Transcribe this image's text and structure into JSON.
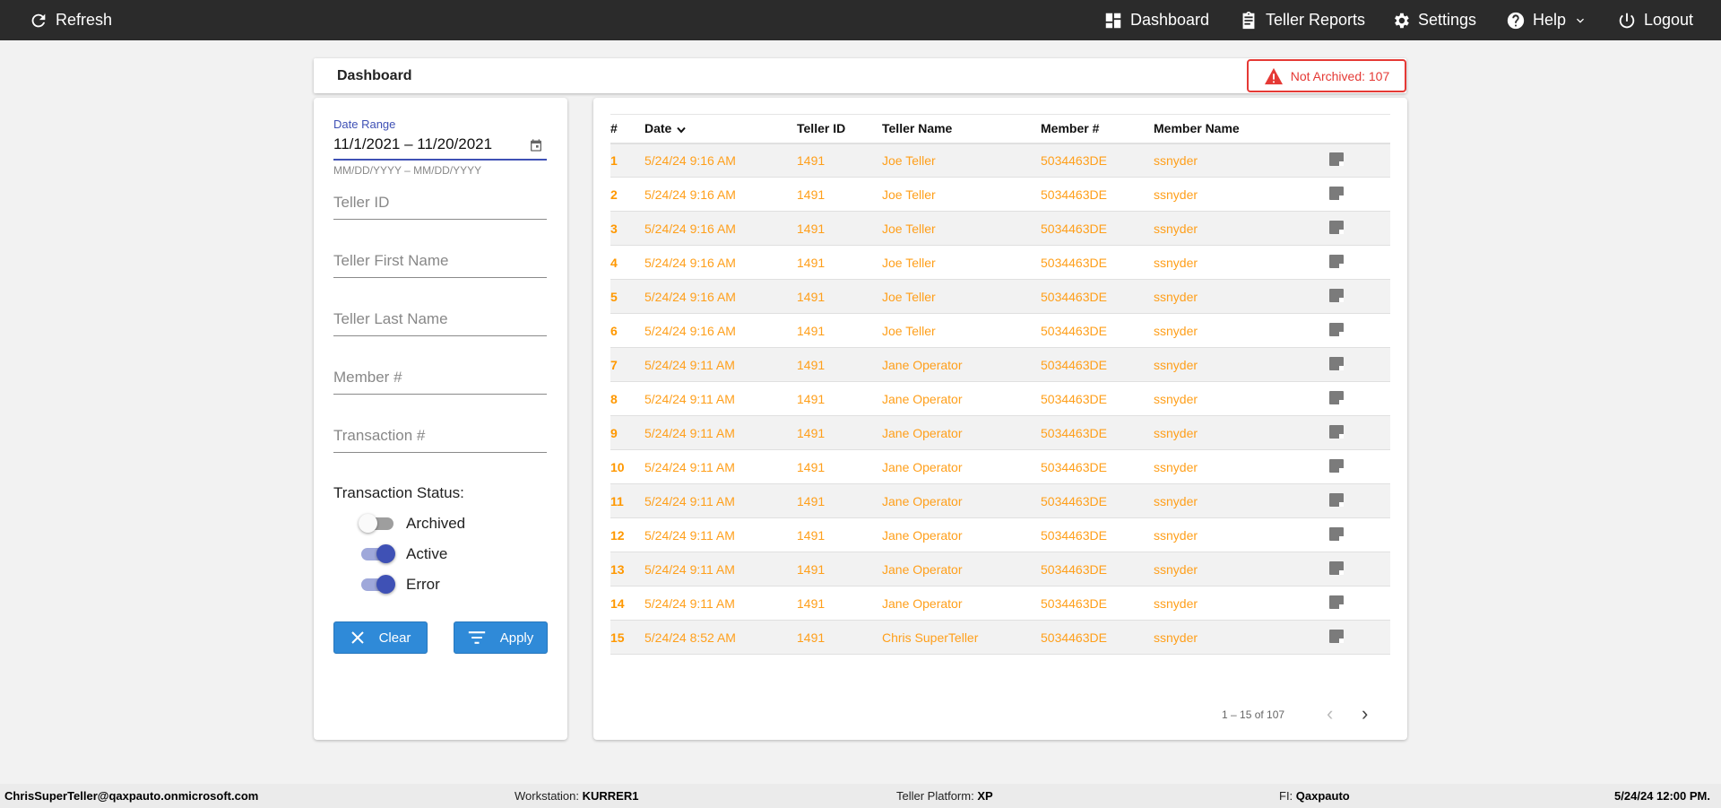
{
  "topbar": {
    "refresh": "Refresh",
    "dashboard": "Dashboard",
    "teller_reports": "Teller Reports",
    "settings": "Settings",
    "help": "Help",
    "logout": "Logout"
  },
  "header": {
    "title": "Dashboard",
    "badge": "Not Archived: 107",
    "badge_color": "#e53935"
  },
  "filters": {
    "date_label": "Date Range",
    "date_value": "11/1/2021 – 11/20/2021",
    "date_hint": "MM/DD/YYYY – MM/DD/YYYY",
    "teller_id": "Teller ID",
    "first_name": "Teller First Name",
    "last_name": "Teller Last Name",
    "member": "Member #",
    "transaction": "Transaction #",
    "status_label": "Transaction Status:",
    "toggles": [
      {
        "label": "Archived",
        "on": false
      },
      {
        "label": "Active",
        "on": true
      },
      {
        "label": "Error",
        "on": true
      }
    ],
    "clear": "Clear",
    "apply": "Apply"
  },
  "table": {
    "columns": [
      "#",
      "Date",
      "Teller ID",
      "Teller Name",
      "Member #",
      "Member Name"
    ],
    "rows": [
      [
        "1",
        "5/24/24 9:16 AM",
        "1491",
        "Joe Teller",
        "5034463DE",
        "ssnyder"
      ],
      [
        "2",
        "5/24/24 9:16 AM",
        "1491",
        "Joe Teller",
        "5034463DE",
        "ssnyder"
      ],
      [
        "3",
        "5/24/24 9:16 AM",
        "1491",
        "Joe Teller",
        "5034463DE",
        "ssnyder"
      ],
      [
        "4",
        "5/24/24 9:16 AM",
        "1491",
        "Joe Teller",
        "5034463DE",
        "ssnyder"
      ],
      [
        "5",
        "5/24/24 9:16 AM",
        "1491",
        "Joe Teller",
        "5034463DE",
        "ssnyder"
      ],
      [
        "6",
        "5/24/24 9:16 AM",
        "1491",
        "Joe Teller",
        "5034463DE",
        "ssnyder"
      ],
      [
        "7",
        "5/24/24 9:11 AM",
        "1491",
        "Jane Operator",
        "5034463DE",
        "ssnyder"
      ],
      [
        "8",
        "5/24/24 9:11 AM",
        "1491",
        "Jane Operator",
        "5034463DE",
        "ssnyder"
      ],
      [
        "9",
        "5/24/24 9:11 AM",
        "1491",
        "Jane Operator",
        "5034463DE",
        "ssnyder"
      ],
      [
        "10",
        "5/24/24 9:11 AM",
        "1491",
        "Jane Operator",
        "5034463DE",
        "ssnyder"
      ],
      [
        "11",
        "5/24/24 9:11 AM",
        "1491",
        "Jane Operator",
        "5034463DE",
        "ssnyder"
      ],
      [
        "12",
        "5/24/24 9:11 AM",
        "1491",
        "Jane Operator",
        "5034463DE",
        "ssnyder"
      ],
      [
        "13",
        "5/24/24 9:11 AM",
        "1491",
        "Jane Operator",
        "5034463DE",
        "ssnyder"
      ],
      [
        "14",
        "5/24/24 9:11 AM",
        "1491",
        "Jane Operator",
        "5034463DE",
        "ssnyder"
      ],
      [
        "15",
        "5/24/24 8:52 AM",
        "1491",
        "Chris SuperTeller",
        "5034463DE",
        "ssnyder"
      ]
    ],
    "pagination": "1 – 15 of 107"
  },
  "footer": {
    "user": "ChrisSuperTeller@qaxpauto.onmicrosoft.com",
    "workstation_label": "Workstation: ",
    "workstation": "KURRER1",
    "platform_label": "Teller Platform: ",
    "platform": "XP",
    "fi_label": "FI: ",
    "fi": "Qaxpauto",
    "datetime": "5/24/24 12:00 PM."
  }
}
